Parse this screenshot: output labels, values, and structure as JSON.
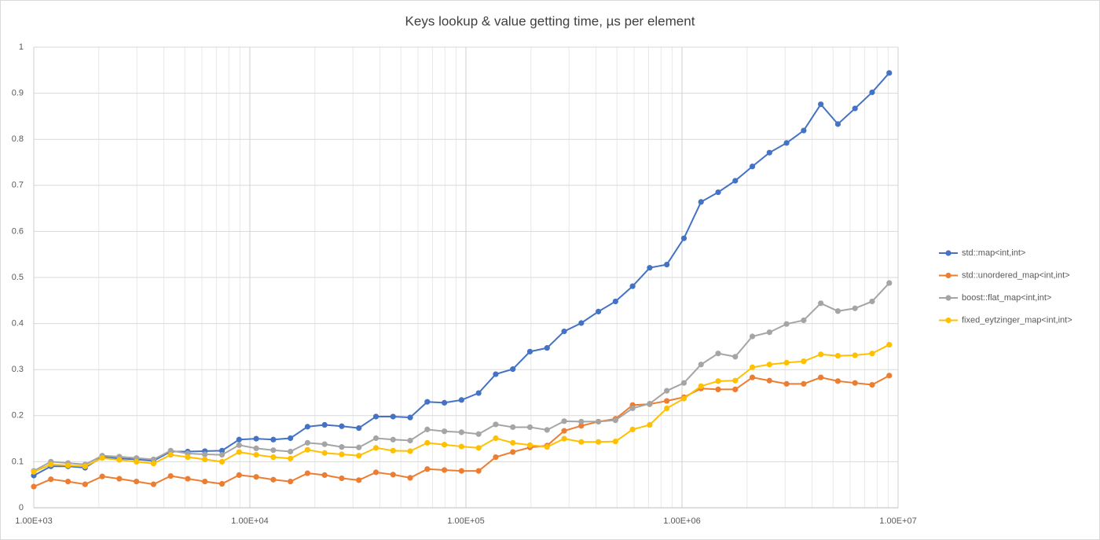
{
  "chart_data": {
    "type": "line",
    "title": "Keys lookup & value getting time, µs per element",
    "x": [
      1000,
      1200,
      1440,
      1728,
      2074,
      2488,
      2986,
      3583,
      4300,
      5160,
      6192,
      7430,
      8916,
      10699,
      12839,
      15407,
      18488,
      22186,
      26623,
      31948,
      38338,
      46005,
      55206,
      66247,
      79497,
      95396,
      114475,
      137371,
      164845,
      197814,
      237376,
      284852,
      341822,
      410186,
      492224,
      590668,
      708802,
      850562,
      1020675,
      1224810,
      1469772,
      1763726,
      2116471,
      2539765,
      3047718,
      3657262,
      4388714,
      5266457,
      6319749,
      7583698,
      9100438
    ],
    "series": [
      {
        "name": "std::map<int,int>",
        "color": "#4472c4",
        "values": [
          0.07,
          0.09,
          0.09,
          0.087,
          0.11,
          0.107,
          0.105,
          0.102,
          0.122,
          0.122,
          0.123,
          0.124,
          0.148,
          0.15,
          0.148,
          0.151,
          0.176,
          0.18,
          0.177,
          0.173,
          0.198,
          0.198,
          0.196,
          0.23,
          0.228,
          0.234,
          0.249,
          0.29,
          0.301,
          0.339,
          0.347,
          0.383,
          0.401,
          0.426,
          0.448,
          0.481,
          0.521,
          0.528,
          0.585,
          0.664,
          0.685,
          0.71,
          0.741,
          0.771,
          0.792,
          0.819,
          0.876,
          0.833,
          0.867,
          0.902,
          0.944
        ]
      },
      {
        "name": "std::unordered_map<int,int>",
        "color": "#ed7d31",
        "values": [
          0.046,
          0.062,
          0.057,
          0.051,
          0.068,
          0.063,
          0.057,
          0.051,
          0.069,
          0.063,
          0.057,
          0.052,
          0.071,
          0.067,
          0.061,
          0.057,
          0.075,
          0.071,
          0.064,
          0.06,
          0.077,
          0.072,
          0.065,
          0.084,
          0.082,
          0.08,
          0.08,
          0.11,
          0.121,
          0.131,
          0.135,
          0.167,
          0.178,
          0.187,
          0.193,
          0.223,
          0.225,
          0.232,
          0.24,
          0.259,
          0.257,
          0.257,
          0.283,
          0.276,
          0.269,
          0.269,
          0.283,
          0.275,
          0.271,
          0.267,
          0.287
        ]
      },
      {
        "name": "boost::flat_map<int,int>",
        "color": "#a5a5a5",
        "values": [
          0.08,
          0.1,
          0.097,
          0.094,
          0.113,
          0.111,
          0.108,
          0.105,
          0.124,
          0.118,
          0.116,
          0.115,
          0.136,
          0.129,
          0.125,
          0.122,
          0.141,
          0.138,
          0.132,
          0.131,
          0.151,
          0.148,
          0.146,
          0.17,
          0.166,
          0.164,
          0.16,
          0.181,
          0.175,
          0.175,
          0.169,
          0.188,
          0.187,
          0.187,
          0.19,
          0.216,
          0.226,
          0.254,
          0.271,
          0.311,
          0.335,
          0.328,
          0.372,
          0.381,
          0.399,
          0.407,
          0.444,
          0.427,
          0.433,
          0.448,
          0.488
        ]
      },
      {
        "name": "fixed_eytzinger_map<int,int>",
        "color": "#ffc000",
        "values": [
          0.078,
          0.094,
          0.092,
          0.09,
          0.108,
          0.104,
          0.1,
          0.096,
          0.115,
          0.11,
          0.105,
          0.1,
          0.121,
          0.115,
          0.11,
          0.107,
          0.126,
          0.119,
          0.116,
          0.113,
          0.13,
          0.124,
          0.123,
          0.141,
          0.137,
          0.133,
          0.13,
          0.151,
          0.141,
          0.136,
          0.132,
          0.15,
          0.143,
          0.143,
          0.144,
          0.17,
          0.18,
          0.216,
          0.237,
          0.264,
          0.275,
          0.276,
          0.305,
          0.311,
          0.315,
          0.318,
          0.333,
          0.33,
          0.331,
          0.335,
          0.354
        ]
      }
    ],
    "xscale": "log",
    "xlim": [
      1000,
      10000000
    ],
    "xticks": [
      {
        "value": 1000,
        "label": "1.00E+03"
      },
      {
        "value": 10000,
        "label": "1.00E+04"
      },
      {
        "value": 100000,
        "label": "1.00E+05"
      },
      {
        "value": 1000000,
        "label": "1.00E+06"
      },
      {
        "value": 10000000,
        "label": "1.00E+07"
      }
    ],
    "ylim": [
      0,
      1
    ],
    "yticks": [
      0,
      0.1,
      0.2,
      0.3,
      0.4,
      0.5,
      0.6,
      0.7,
      0.8,
      0.9,
      1
    ],
    "grid": true,
    "minor_grid": true,
    "legend": "right"
  }
}
